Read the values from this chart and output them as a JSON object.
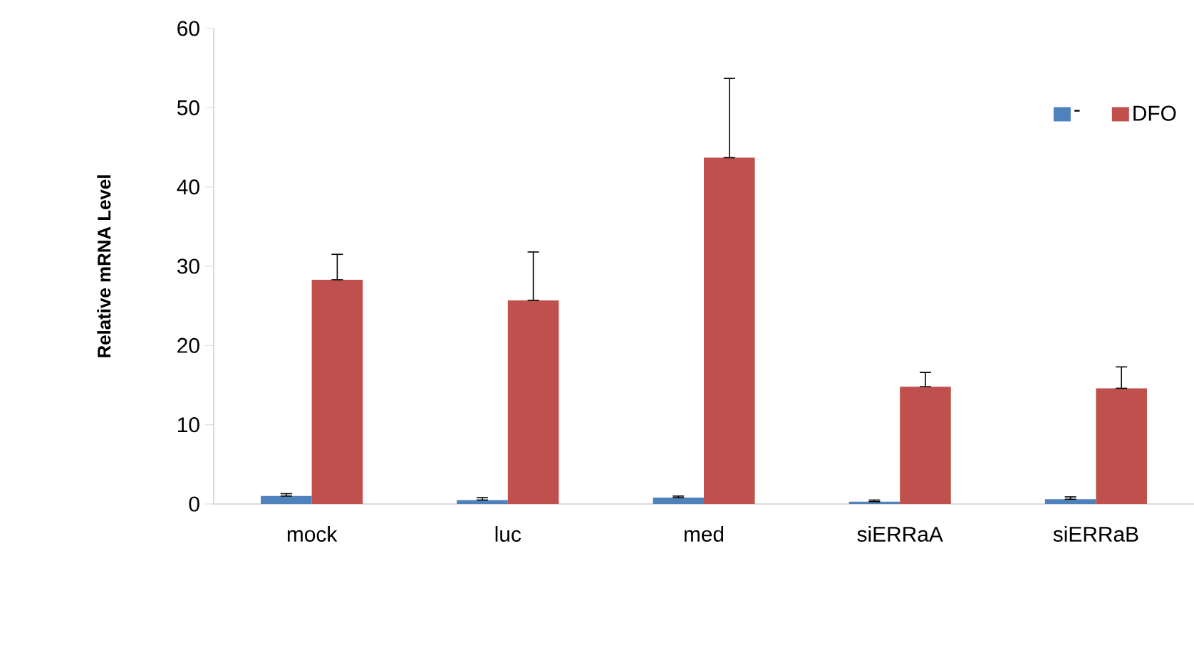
{
  "chart_data": {
    "type": "bar",
    "ylabel": "Relative mRNA Level",
    "categories": [
      "mock",
      "luc",
      "med",
      "siERRaA",
      "siERRaB"
    ],
    "series": [
      {
        "name": "-",
        "color": "#4f81bd",
        "values": [
          1.0,
          0.5,
          0.8,
          0.3,
          0.6
        ],
        "errors": [
          [
            1.0,
            1.3
          ],
          [
            0.5,
            0.8
          ],
          [
            0.8,
            1.0
          ],
          [
            0.3,
            0.5
          ],
          [
            0.6,
            0.9
          ]
        ]
      },
      {
        "name": "DFO",
        "color": "#c0504d",
        "values": [
          28.3,
          25.7,
          43.7,
          14.8,
          14.6
        ],
        "errors": [
          [
            28.3,
            31.5
          ],
          [
            25.7,
            31.8
          ],
          [
            43.7,
            53.7
          ],
          [
            14.8,
            16.6
          ],
          [
            14.6,
            17.3
          ]
        ]
      }
    ],
    "ylim": [
      0,
      60
    ],
    "yticks": [
      0,
      10,
      20,
      30,
      40,
      50,
      60
    ],
    "legend": "top right",
    "grid": false
  }
}
